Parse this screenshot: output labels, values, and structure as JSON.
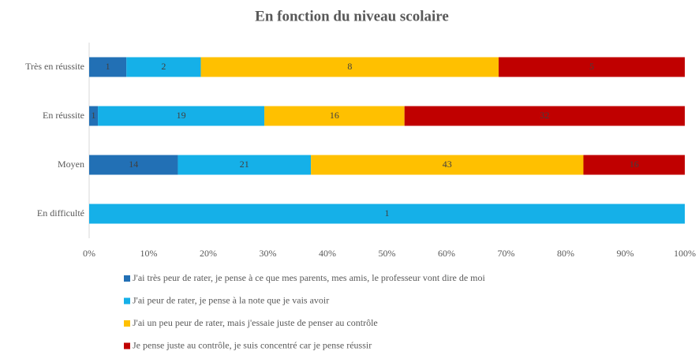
{
  "chart_data": {
    "type": "bar",
    "orientation": "horizontal",
    "stacked": "percent",
    "title": "En fonction du niveau scolaire",
    "categories": [
      "Très en réussite",
      "En réussite",
      "Moyen",
      "En difficulté"
    ],
    "series": [
      {
        "name": "J'ai très peur de rater, je pense à ce que mes parents, mes amis, le professeur vont dire de moi",
        "color": "#2270b5",
        "values": [
          1,
          1,
          14,
          0
        ]
      },
      {
        "name": "J'ai peur de rater, je pense à la note que je vais avoir",
        "color": "#15b0e8",
        "values": [
          2,
          19,
          21,
          1
        ]
      },
      {
        "name": "J'ai un peu peur de rater, mais j'essaie juste de penser au contrôle",
        "color": "#ffc000",
        "values": [
          8,
          16,
          43,
          0
        ]
      },
      {
        "name": "Je pense juste au contrôle, je suis concentré car je pense réussir",
        "color": "#c00000",
        "values": [
          5,
          32,
          16,
          0
        ]
      }
    ],
    "xlim": [
      0,
      100
    ],
    "xticks": [
      {
        "value": 0,
        "label": "0%"
      },
      {
        "value": 10,
        "label": "10%"
      },
      {
        "value": 20,
        "label": "20%"
      },
      {
        "value": 30,
        "label": "30%"
      },
      {
        "value": 40,
        "label": "40%"
      },
      {
        "value": 50,
        "label": "50%"
      },
      {
        "value": 60,
        "label": "60%"
      },
      {
        "value": 70,
        "label": "70%"
      },
      {
        "value": 80,
        "label": "80%"
      },
      {
        "value": 90,
        "label": "90%"
      },
      {
        "value": 100,
        "label": "100%"
      }
    ]
  }
}
